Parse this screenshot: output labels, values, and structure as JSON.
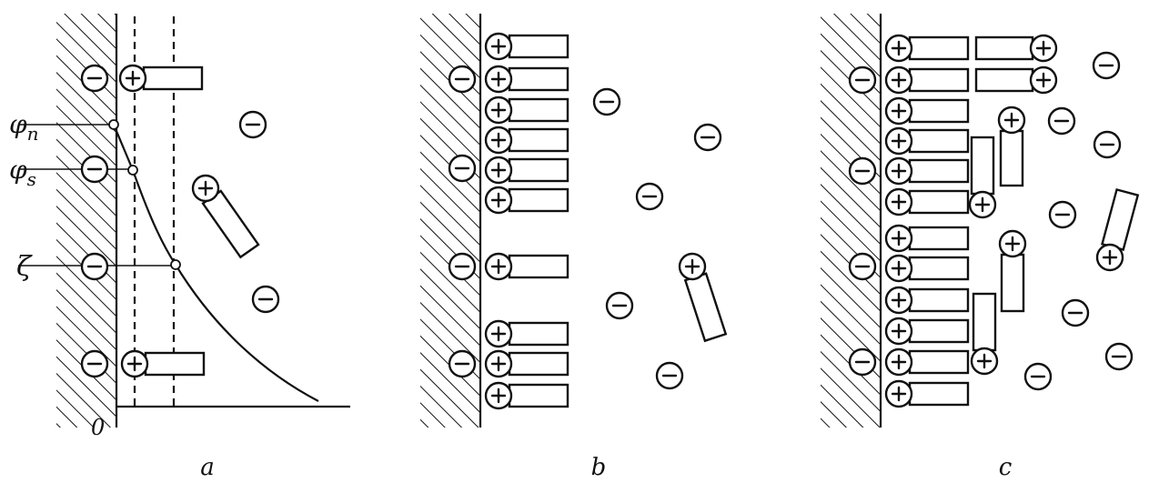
{
  "panels": [
    {
      "label": "a"
    },
    {
      "label": "b"
    },
    {
      "label": "c"
    }
  ],
  "potential_labels": {
    "phi_n": {
      "symbol": "φ",
      "sub": "n"
    },
    "phi_s": {
      "symbol": "φ",
      "sub": "s"
    },
    "zeta": "ζ"
  },
  "origin_label": "0"
}
